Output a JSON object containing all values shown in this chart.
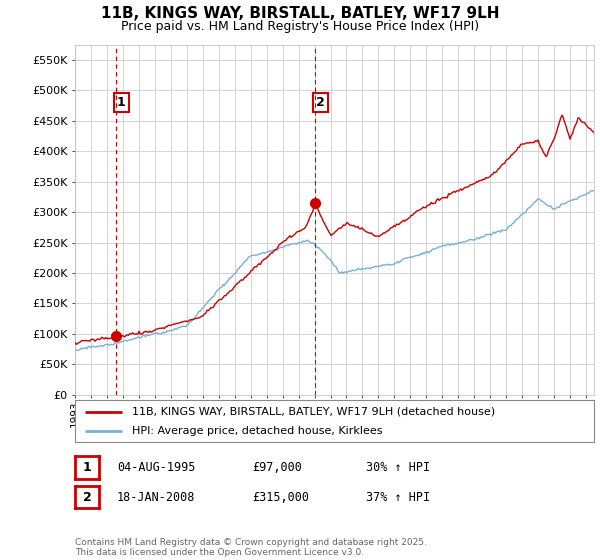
{
  "title": "11B, KINGS WAY, BIRSTALL, BATLEY, WF17 9LH",
  "subtitle": "Price paid vs. HM Land Registry's House Price Index (HPI)",
  "ylim": [
    0,
    575000
  ],
  "xlim_start": 1993.0,
  "xlim_end": 2025.5,
  "hpi_color": "#7ab0d4",
  "property_color": "#cc0000",
  "sale1_date": 1995.585,
  "sale1_price": 97000,
  "sale2_date": 2008.05,
  "sale2_price": 315000,
  "legend_property": "11B, KINGS WAY, BIRSTALL, BATLEY, WF17 9LH (detached house)",
  "legend_hpi": "HPI: Average price, detached house, Kirklees",
  "footer": "Contains HM Land Registry data © Crown copyright and database right 2025.\nThis data is licensed under the Open Government Licence v3.0."
}
